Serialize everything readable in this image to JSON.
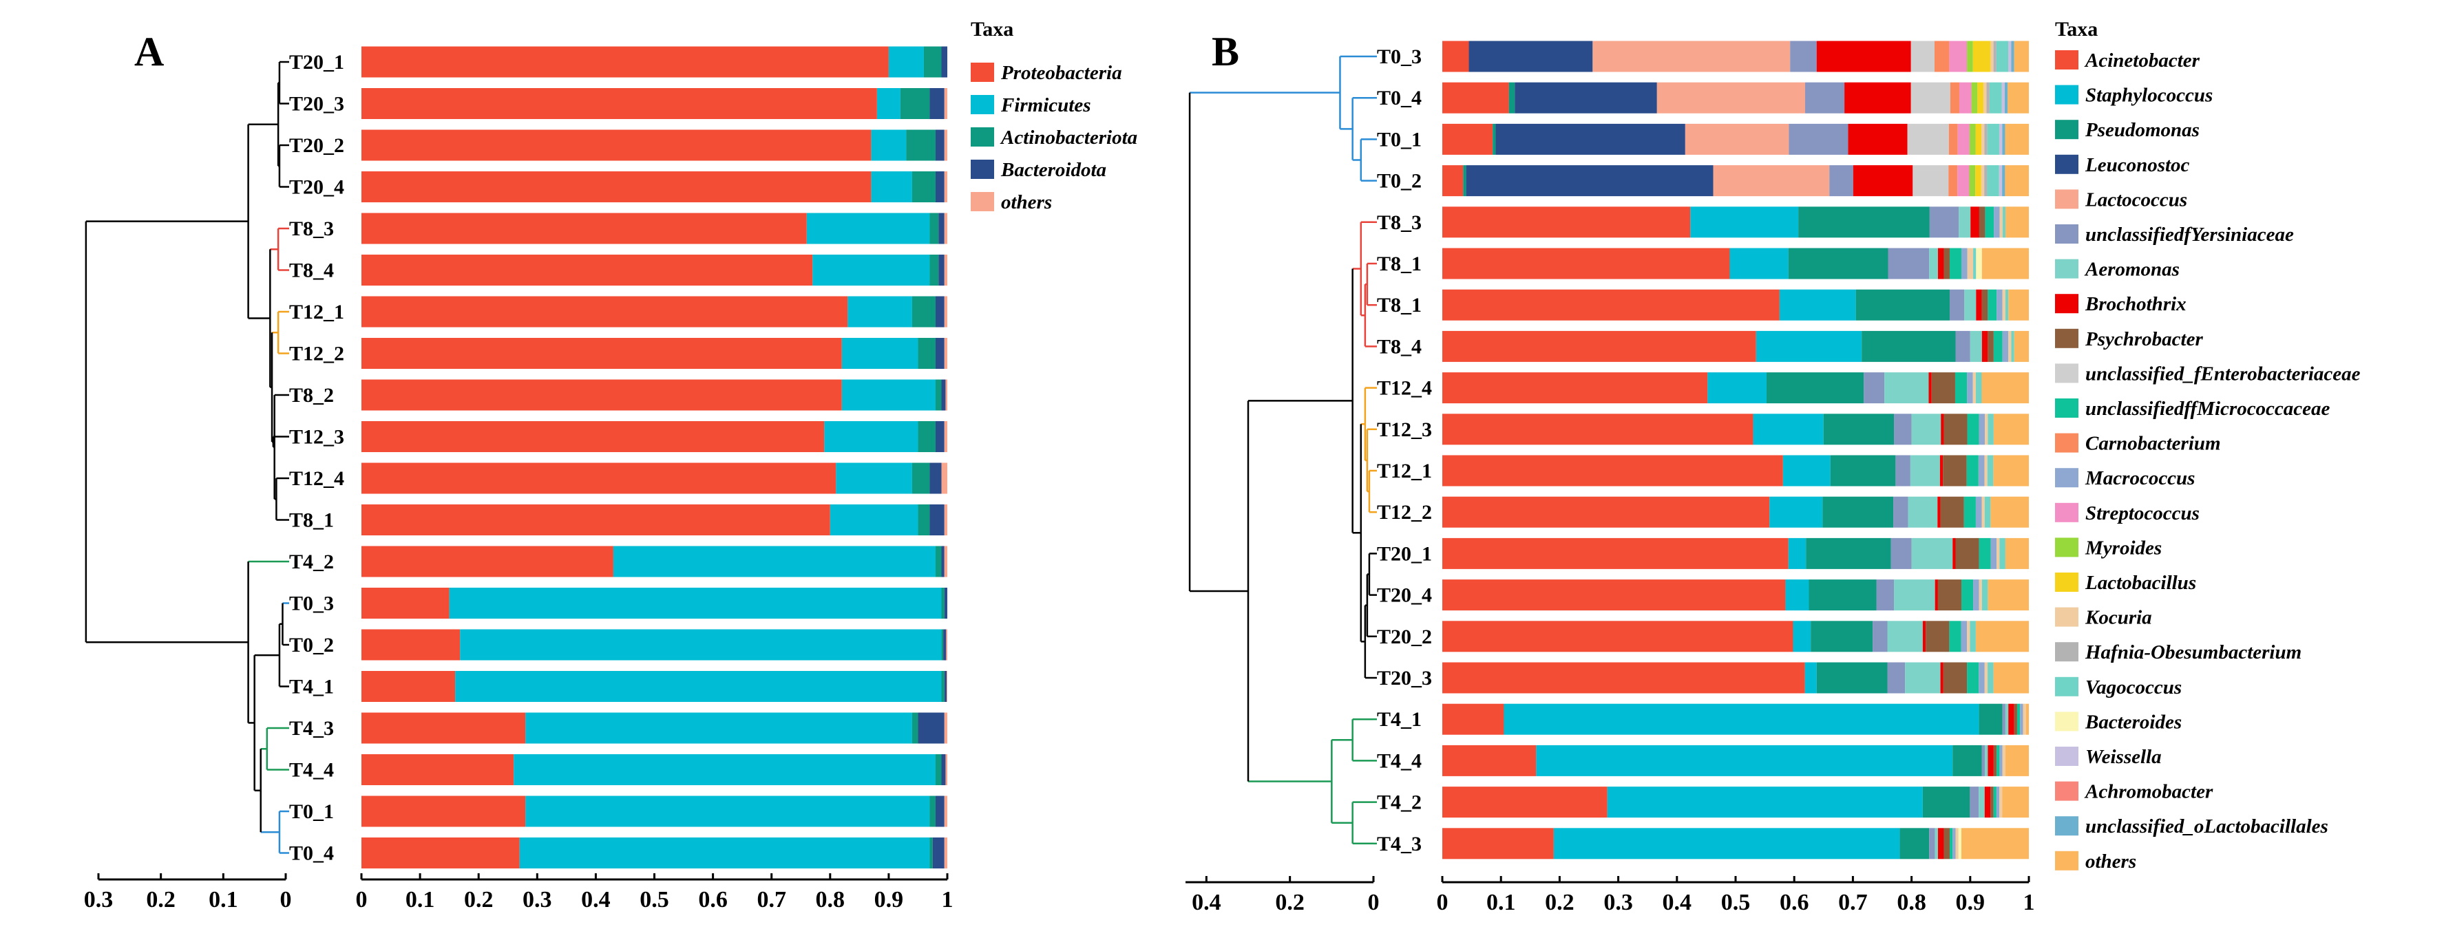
{
  "chart_data": [
    {
      "panel": "A",
      "type": "bar",
      "orientation": "horizontal",
      "stacked": true,
      "xlim": [
        0,
        1
      ],
      "x_ticks": [
        "0",
        "0.1",
        "0.2",
        "0.3",
        "0.4",
        "0.5",
        "0.6",
        "0.7",
        "0.8",
        "0.9",
        "1"
      ],
      "dendrogram_ticks": [
        "0.3",
        "0.2",
        "0.1",
        "0"
      ],
      "legend_title": "Taxa",
      "taxa": [
        {
          "name": "Proteobacteria",
          "color": "#f44d36"
        },
        {
          "name": "Firmicutes",
          "color": "#00bcd4"
        },
        {
          "name": "Actinobacteriota",
          "color": "#0e9a80"
        },
        {
          "name": "Bacteroidota",
          "color": "#2b4c8a"
        },
        {
          "name": "others",
          "color": "#f9a68e"
        }
      ],
      "categories": [
        "T20_1",
        "T20_3",
        "T20_2",
        "T20_4",
        "T8_3",
        "T8_4",
        "T12_1",
        "T12_2",
        "T8_2",
        "T12_3",
        "T12_4",
        "T8_1",
        "T4_2",
        "T0_3",
        "T0_2",
        "T4_1",
        "T4_3",
        "T4_4",
        "T0_1",
        "T0_4"
      ],
      "category_colors": [
        "#000000",
        "#000000",
        "#000000",
        "#000000",
        "#e8433a",
        "#e8433a",
        "#f3a21d",
        "#f3a21d",
        "#000000",
        "#000000",
        "#000000",
        "#000000",
        "#1a9a55",
        "#2b8cd6",
        "#000000",
        "#000000",
        "#1a9a55",
        "#1a9a55",
        "#2b8cd6",
        "#2b8cd6"
      ],
      "series": [
        {
          "name": "Proteobacteria",
          "values": [
            0.9,
            0.88,
            0.87,
            0.87,
            0.76,
            0.77,
            0.83,
            0.82,
            0.82,
            0.79,
            0.81,
            0.8,
            0.43,
            0.15,
            0.17,
            0.16,
            0.28,
            0.26,
            0.28,
            0.27
          ]
        },
        {
          "name": "Firmicutes",
          "values": [
            0.06,
            0.04,
            0.06,
            0.07,
            0.21,
            0.2,
            0.11,
            0.13,
            0.16,
            0.16,
            0.13,
            0.15,
            0.55,
            0.84,
            0.83,
            0.83,
            0.66,
            0.72,
            0.69,
            0.7
          ]
        },
        {
          "name": "Actinobacteriota",
          "values": [
            0.03,
            0.05,
            0.05,
            0.04,
            0.015,
            0.015,
            0.04,
            0.03,
            0.01,
            0.03,
            0.03,
            0.02,
            0.01,
            0.005,
            0.003,
            0.005,
            0.01,
            0.01,
            0.01,
            0.005
          ]
        },
        {
          "name": "Bacteroidota",
          "values": [
            0.01,
            0.025,
            0.015,
            0.015,
            0.01,
            0.01,
            0.015,
            0.015,
            0.007,
            0.015,
            0.02,
            0.025,
            0.005,
            0.005,
            0.005,
            0.004,
            0.045,
            0.007,
            0.015,
            0.02
          ]
        },
        {
          "name": "others",
          "values": [
            0.0,
            0.005,
            0.005,
            0.005,
            0.005,
            0.005,
            0.005,
            0.005,
            0.003,
            0.005,
            0.01,
            0.005,
            0.005,
            0.0,
            0.002,
            0.001,
            0.005,
            0.003,
            0.005,
            0.005
          ]
        }
      ]
    },
    {
      "panel": "B",
      "type": "bar",
      "orientation": "horizontal",
      "stacked": true,
      "xlim": [
        0,
        1
      ],
      "x_ticks": [
        "0",
        "0.1",
        "0.2",
        "0.3",
        "0.4",
        "0.5",
        "0.6",
        "0.7",
        "0.8",
        "0.9",
        "1"
      ],
      "dendrogram_ticks": [
        "0.4",
        "0.2",
        "0"
      ],
      "legend_title": "Taxa",
      "taxa": [
        {
          "name": "Acinetobacter",
          "color": "#f44d36"
        },
        {
          "name": "Staphylococcus",
          "color": "#00bcd4"
        },
        {
          "name": "Pseudomonas",
          "color": "#0e9a80"
        },
        {
          "name": "Leuconostoc",
          "color": "#2b4c8a"
        },
        {
          "name": "Lactococcus",
          "color": "#f9a68e"
        },
        {
          "name": "unclassifiedfYersiniaceae",
          "color": "#8796c0"
        },
        {
          "name": "Aeromonas",
          "color": "#7ed3c8"
        },
        {
          "name": "Brochothrix",
          "color": "#ee0000"
        },
        {
          "name": "Psychrobacter",
          "color": "#8c5e3c"
        },
        {
          "name": "unclassified_fEnterobacteriaceae",
          "color": "#cfcfcf"
        },
        {
          "name": "unclassifiedffMicrococcaceae",
          "color": "#10c29a"
        },
        {
          "name": "Carnobacterium",
          "color": "#fa8a5e"
        },
        {
          "name": "Macrococcus",
          "color": "#8fa8d2"
        },
        {
          "name": "Streptococcus",
          "color": "#f48fc6"
        },
        {
          "name": "Myroides",
          "color": "#97d83b"
        },
        {
          "name": "Lactobacillus",
          "color": "#f7d21a"
        },
        {
          "name": "Kocuria",
          "color": "#f0cca0"
        },
        {
          "name": "Hafnia-Obesumbacterium",
          "color": "#b3b3b3"
        },
        {
          "name": "Vagococcus",
          "color": "#6fd4c6"
        },
        {
          "name": "Bacteroides",
          "color": "#fbf6b4"
        },
        {
          "name": "Weissella",
          "color": "#c7c0e0"
        },
        {
          "name": "Achromobacter",
          "color": "#f8847a"
        },
        {
          "name": "unclassified_oLactobacillales",
          "color": "#6cb0d0"
        },
        {
          "name": "others",
          "color": "#fbb65e"
        }
      ],
      "categories": [
        "T0_3",
        "T0_4",
        "T0_1",
        "T0_2",
        "T8_3",
        "T8_1",
        "T8_1",
        "T8_4",
        "T12_4",
        "T12_3",
        "T12_1",
        "T12_2",
        "T20_1",
        "T20_4",
        "T20_2",
        "T20_3",
        "T4_1",
        "T4_4",
        "T4_2",
        "T4_3"
      ],
      "category_colors": [
        "#2b8cd6",
        "#2b8cd6",
        "#2b8cd6",
        "#2b8cd6",
        "#e8433a",
        "#e8433a",
        "#e8433a",
        "#e8433a",
        "#f3a21d",
        "#f3a21d",
        "#f3a21d",
        "#f3a21d",
        "#000000",
        "#000000",
        "#000000",
        "#000000",
        "#1a9a55",
        "#1a9a55",
        "#1a9a55",
        "#1a9a55"
      ],
      "series": [
        {
          "name": "Acinetobacter",
          "values": [
            0.045,
            0.11,
            0.085,
            0.035,
            0.425,
            0.49,
            0.575,
            0.535,
            0.45,
            0.53,
            0.575,
            0.555,
            0.59,
            0.585,
            0.595,
            0.615,
            0.105,
            0.16,
            0.28,
            0.19
          ]
        },
        {
          "name": "Staphylococcus",
          "values": [
            0.0,
            0.0,
            0.0,
            0.0,
            0.185,
            0.1,
            0.13,
            0.18,
            0.1,
            0.12,
            0.08,
            0.09,
            0.03,
            0.04,
            0.03,
            0.02,
            0.81,
            0.71,
            0.535,
            0.59
          ]
        },
        {
          "name": "Pseudomonas",
          "values": [
            0.0,
            0.01,
            0.005,
            0.005,
            0.225,
            0.17,
            0.16,
            0.16,
            0.165,
            0.12,
            0.11,
            0.12,
            0.145,
            0.115,
            0.105,
            0.12,
            0.04,
            0.05,
            0.08,
            0.05
          ]
        },
        {
          "name": "Leuconostoc",
          "values": [
            0.21,
            0.235,
            0.32,
            0.415,
            0.0,
            0.0,
            0.0,
            0.0,
            0.0,
            0.0,
            0.0,
            0.0,
            0.0,
            0.0,
            0.0,
            0.0,
            0.0,
            0.0,
            0.0,
            0.0
          ]
        },
        {
          "name": "Lactococcus",
          "values": [
            0.335,
            0.245,
            0.175,
            0.195,
            0.0,
            0.0,
            0.0,
            0.0,
            0.0,
            0.0,
            0.0,
            0.0,
            0.0,
            0.0,
            0.0,
            0.0,
            0.0,
            0.0,
            0.0,
            0.0
          ]
        },
        {
          "name": "unclassifiedfYersiniaceae",
          "values": [
            0.045,
            0.065,
            0.1,
            0.04,
            0.05,
            0.07,
            0.025,
            0.025,
            0.035,
            0.03,
            0.025,
            0.025,
            0.035,
            0.03,
            0.025,
            0.03,
            0.005,
            0.005,
            0.015,
            0.01
          ]
        },
        {
          "name": "Aeromonas",
          "values": [
            0.0,
            0.0,
            0.0,
            0.0,
            0.02,
            0.015,
            0.02,
            0.02,
            0.075,
            0.05,
            0.05,
            0.05,
            0.07,
            0.07,
            0.06,
            0.06,
            0.005,
            0.005,
            0.01,
            0.005
          ]
        },
        {
          "name": "Brochothrix",
          "values": [
            0.16,
            0.11,
            0.1,
            0.1,
            0.015,
            0.01,
            0.01,
            0.01,
            0.005,
            0.005,
            0.005,
            0.005,
            0.005,
            0.005,
            0.005,
            0.005,
            0.01,
            0.01,
            0.01,
            0.01
          ]
        },
        {
          "name": "Psychrobacter",
          "values": [
            0.0,
            0.0,
            0.0,
            0.0,
            0.01,
            0.01,
            0.01,
            0.01,
            0.04,
            0.04,
            0.04,
            0.04,
            0.04,
            0.04,
            0.04,
            0.04,
            0.005,
            0.005,
            0.005,
            0.01
          ]
        },
        {
          "name": "unclassified_fEnterobacteriaceae",
          "values": [
            0.04,
            0.065,
            0.07,
            0.06,
            0.0,
            0.0,
            0.0,
            0.0,
            0.0,
            0.0,
            0.0,
            0.0,
            0.0,
            0.0,
            0.0,
            0.0,
            0.0,
            0.0,
            0.0,
            0.0
          ]
        },
        {
          "name": "unclassifiedffMicrococcaceae",
          "values": [
            0.0,
            0.0,
            0.0,
            0.0,
            0.015,
            0.02,
            0.015,
            0.015,
            0.02,
            0.02,
            0.02,
            0.02,
            0.02,
            0.02,
            0.02,
            0.02,
            0.005,
            0.005,
            0.005,
            0.005
          ]
        },
        {
          "name": "Carnobacterium",
          "values": [
            0.025,
            0.015,
            0.015,
            0.015,
            0.0,
            0.0,
            0.0,
            0.0,
            0.0,
            0.0,
            0.0,
            0.0,
            0.0,
            0.0,
            0.0,
            0.0,
            0.0,
            0.0,
            0.0,
            0.0
          ]
        },
        {
          "name": "Macrococcus",
          "values": [
            0.0,
            0.0,
            0.0,
            0.0,
            0.01,
            0.01,
            0.01,
            0.01,
            0.01,
            0.01,
            0.01,
            0.01,
            0.01,
            0.01,
            0.01,
            0.01,
            0.005,
            0.005,
            0.005,
            0.005
          ]
        },
        {
          "name": "Streptococcus",
          "values": [
            0.03,
            0.02,
            0.02,
            0.02,
            0.0,
            0.0,
            0.0,
            0.0,
            0.0,
            0.0,
            0.0,
            0.0,
            0.0,
            0.0,
            0.0,
            0.0,
            0.0,
            0.0,
            0.0,
            0.0
          ]
        },
        {
          "name": "Myroides",
          "values": [
            0.01,
            0.01,
            0.01,
            0.01,
            0.0,
            0.0,
            0.0,
            0.0,
            0.0,
            0.0,
            0.0,
            0.0,
            0.0,
            0.0,
            0.0,
            0.0,
            0.0,
            0.0,
            0.0,
            0.0
          ]
        },
        {
          "name": "Lactobacillus",
          "values": [
            0.03,
            0.01,
            0.01,
            0.01,
            0.0,
            0.0,
            0.0,
            0.0,
            0.0,
            0.0,
            0.0,
            0.0,
            0.0,
            0.0,
            0.0,
            0.0,
            0.0,
            0.0,
            0.0,
            0.0
          ]
        },
        {
          "name": "Kocuria",
          "values": [
            0.005,
            0.005,
            0.005,
            0.005,
            0.005,
            0.01,
            0.005,
            0.005,
            0.005,
            0.005,
            0.005,
            0.005,
            0.005,
            0.005,
            0.005,
            0.005,
            0.005,
            0.005,
            0.005,
            0.005
          ]
        },
        {
          "name": "Hafnia-Obesumbacterium",
          "values": [
            0.005,
            0.005,
            0.005,
            0.005,
            0.0,
            0.0,
            0.0,
            0.0,
            0.0,
            0.0,
            0.0,
            0.0,
            0.0,
            0.0,
            0.0,
            0.0,
            0.0,
            0.0,
            0.0,
            0.0
          ]
        },
        {
          "name": "Vagococcus",
          "values": [
            0.02,
            0.02,
            0.02,
            0.02,
            0.005,
            0.005,
            0.005,
            0.005,
            0.01,
            0.01,
            0.01,
            0.01,
            0.01,
            0.01,
            0.01,
            0.01,
            0.0,
            0.0,
            0.0,
            0.0
          ]
        },
        {
          "name": "Bacteroides",
          "values": [
            0.0,
            0.0,
            0.0,
            0.0,
            0.0,
            0.01,
            0.0,
            0.0,
            0.0,
            0.0,
            0.0,
            0.0,
            0.0,
            0.0,
            0.0,
            0.0,
            0.0,
            0.0,
            0.0,
            0.005
          ]
        },
        {
          "name": "Weissella",
          "values": [
            0.005,
            0.005,
            0.005,
            0.005,
            0.0,
            0.0,
            0.0,
            0.0,
            0.0,
            0.0,
            0.0,
            0.0,
            0.0,
            0.0,
            0.0,
            0.0,
            0.0,
            0.0,
            0.0,
            0.0
          ]
        },
        {
          "name": "Achromobacter",
          "values": [
            0.0,
            0.0,
            0.0,
            0.0,
            0.0,
            0.0,
            0.0,
            0.0,
            0.0,
            0.0,
            0.0,
            0.0,
            0.0,
            0.0,
            0.0,
            0.0,
            0.0,
            0.0,
            0.0,
            0.0
          ]
        },
        {
          "name": "unclassified_oLactobacillales",
          "values": [
            0.005,
            0.005,
            0.005,
            0.005,
            0.0,
            0.0,
            0.0,
            0.0,
            0.0,
            0.0,
            0.0,
            0.0,
            0.0,
            0.0,
            0.0,
            0.0,
            0.0,
            0.0,
            0.0,
            0.0
          ]
        },
        {
          "name": "others",
          "values": [
            0.025,
            0.035,
            0.04,
            0.04,
            0.04,
            0.08,
            0.035,
            0.025,
            0.08,
            0.06,
            0.06,
            0.065,
            0.04,
            0.07,
            0.09,
            0.06,
            0.005,
            0.04,
            0.045,
            0.115
          ]
        }
      ]
    }
  ]
}
